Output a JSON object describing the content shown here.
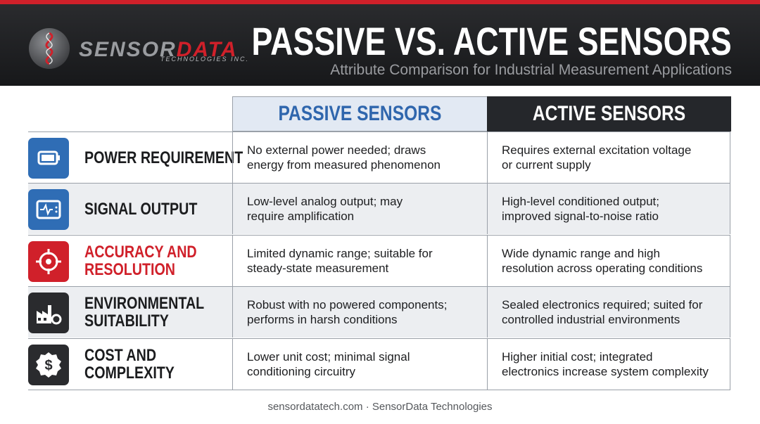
{
  "header": {
    "logo": {
      "name_part1": "SENSOR",
      "name_part2": "DATA",
      "tagline": "TECHNOLOGIES INC."
    },
    "title": "PASSIVE VS. ACTIVE SENSORS",
    "subtitle": "Attribute Comparison for Industrial Measurement Applications"
  },
  "table": {
    "columns": [
      "PASSIVE SENSORS",
      "ACTIVE SENSORS"
    ],
    "rows": [
      {
        "label": [
          "POWER REQUIREMENT"
        ],
        "passive": [
          "No external power needed; draws",
          "energy from measured phenomenon"
        ],
        "active": [
          "Requires external excitation voltage",
          "or current supply"
        ]
      },
      {
        "label": [
          "SIGNAL OUTPUT"
        ],
        "passive": [
          "Low-level analog output; may",
          "require amplification"
        ],
        "active": [
          "High-level conditioned output;",
          "improved signal-to-noise ratio"
        ]
      },
      {
        "label": [
          "ACCURACY AND",
          "RESOLUTION"
        ],
        "passive": [
          "Limited dynamic range; suitable for",
          "steady-state measurement"
        ],
        "active": [
          "Wide dynamic range and high",
          "resolution across operating conditions"
        ]
      },
      {
        "label": [
          "ENVIRONMENTAL",
          "SUITABILITY"
        ],
        "passive": [
          "Robust with no powered components;",
          "performs in harsh conditions"
        ],
        "active": [
          "Sealed electronics required; suited for",
          "controlled industrial environments"
        ]
      },
      {
        "label": [
          "COST AND",
          "COMPLEXITY"
        ],
        "passive": [
          "Lower unit cost; minimal signal",
          "conditioning circuitry"
        ],
        "active": [
          "Higher initial cost; integrated",
          "electronics increase system complexity"
        ]
      }
    ]
  },
  "footer": "sensordatatech.com · SensorData Technologies"
}
